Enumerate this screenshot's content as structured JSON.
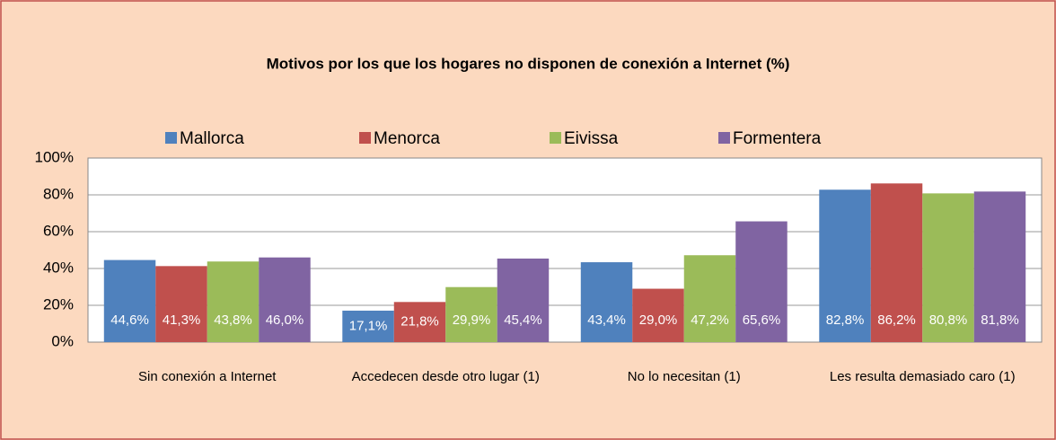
{
  "chart_data": {
    "type": "bar",
    "title": "Motivos  por los que los hogares no disponen de conexión a Internet (%)",
    "categories": [
      "Sin conexión a Internet",
      "Accedecen desde otro lugar (1)",
      "No lo necesitan (1)",
      "Les resulta demasiado caro (1)"
    ],
    "series": [
      {
        "name": "Mallorca",
        "color": "#4f81bd",
        "values": [
          44.6,
          17.1,
          43.4,
          82.8
        ],
        "value_labels": [
          "44,6%",
          "17,1%",
          "43,4%",
          "82,8%"
        ]
      },
      {
        "name": "Menorca",
        "color": "#c0504d",
        "values": [
          41.3,
          21.8,
          29.0,
          86.2
        ],
        "value_labels": [
          "41,3%",
          "21,8%",
          "29,0%",
          "86,2%"
        ]
      },
      {
        "name": "Eivissa",
        "color": "#9bbb59",
        "values": [
          43.8,
          29.9,
          47.2,
          80.8
        ],
        "value_labels": [
          "43,8%",
          "29,9%",
          "47,2%",
          "80,8%"
        ]
      },
      {
        "name": "Formentera",
        "color": "#8064a2",
        "values": [
          46.0,
          45.4,
          65.6,
          81.8
        ],
        "value_labels": [
          "46,0%",
          "45,4%",
          "65,6%",
          "81,8%"
        ]
      }
    ],
    "ylim": [
      0,
      100
    ],
    "yticks": [
      {
        "value": 0,
        "label": "0%"
      },
      {
        "value": 20,
        "label": "20%"
      },
      {
        "value": 40,
        "label": "40%"
      },
      {
        "value": 60,
        "label": "60%"
      },
      {
        "value": 80,
        "label": "80%"
      },
      {
        "value": 100,
        "label": "100%"
      }
    ],
    "grid": true
  }
}
